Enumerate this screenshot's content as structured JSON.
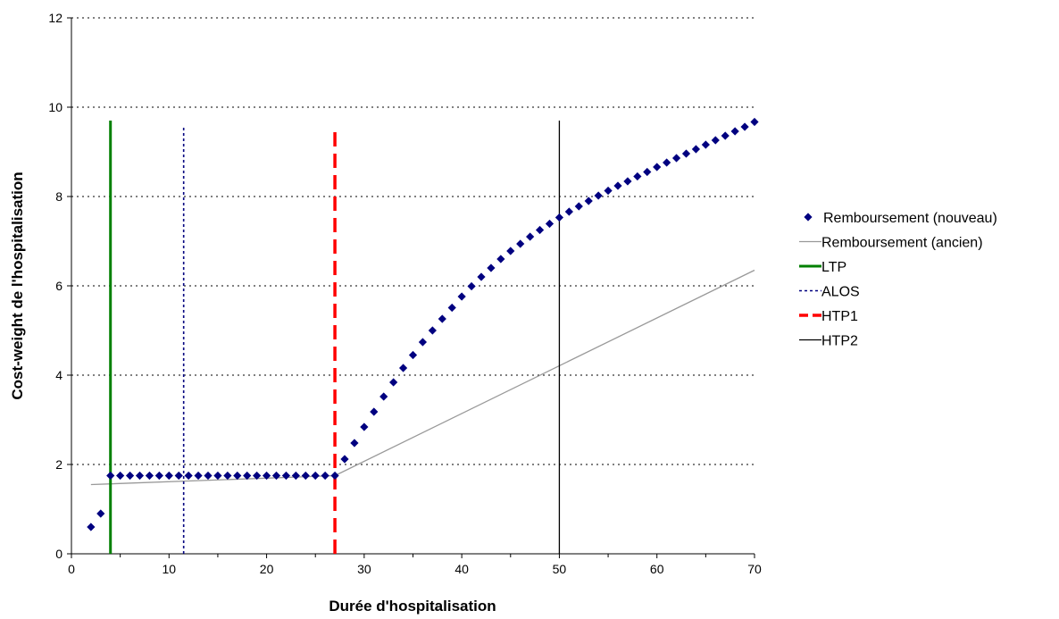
{
  "chart_data": {
    "type": "scatter",
    "title": "",
    "xlabel": "Durée d'hospitalisation",
    "ylabel": "Cost-weight de l'hospitalisation",
    "xlim": [
      0,
      70
    ],
    "ylim": [
      0,
      12
    ],
    "xticks": [
      "0",
      "10",
      "20",
      "30",
      "40",
      "50",
      "60",
      "70"
    ],
    "yticks": [
      "0",
      "2",
      "4",
      "6",
      "8",
      "10",
      "12"
    ],
    "grid": "horizontal dotted",
    "legend_position": "right",
    "series": [
      {
        "name": "Remboursement (nouveau)",
        "kind": "markers",
        "marker": "diamond",
        "color": "#000080",
        "x": [
          2,
          3,
          4,
          5,
          6,
          7,
          8,
          9,
          10,
          11,
          12,
          13,
          14,
          15,
          16,
          17,
          18,
          19,
          20,
          21,
          22,
          23,
          24,
          25,
          26,
          27,
          28,
          29,
          30,
          31,
          32,
          33,
          34,
          35,
          36,
          37,
          38,
          39,
          40,
          41,
          42,
          43,
          44,
          45,
          46,
          47,
          48,
          49,
          50,
          51,
          52,
          53,
          54,
          55,
          56,
          57,
          58,
          59,
          60,
          61,
          62,
          63,
          64,
          65,
          66,
          67,
          68,
          69,
          70
        ],
        "y": [
          0.6,
          0.9,
          1.75,
          1.75,
          1.75,
          1.75,
          1.75,
          1.75,
          1.75,
          1.75,
          1.75,
          1.75,
          1.75,
          1.75,
          1.75,
          1.75,
          1.75,
          1.75,
          1.75,
          1.75,
          1.75,
          1.75,
          1.75,
          1.75,
          1.75,
          1.75,
          2.12,
          2.48,
          2.84,
          3.18,
          3.52,
          3.84,
          4.16,
          4.45,
          4.74,
          5.0,
          5.26,
          5.51,
          5.76,
          5.99,
          6.2,
          6.4,
          6.6,
          6.78,
          6.94,
          7.1,
          7.25,
          7.39,
          7.53,
          7.66,
          7.78,
          7.9,
          8.02,
          8.13,
          8.24,
          8.34,
          8.45,
          8.55,
          8.66,
          8.76,
          8.86,
          8.96,
          9.06,
          9.16,
          9.26,
          9.36,
          9.46,
          9.56,
          9.67
        ]
      },
      {
        "name": "Remboursement (ancien)",
        "kind": "line",
        "color": "#999999",
        "x": [
          2,
          27,
          70
        ],
        "y": [
          1.55,
          1.75,
          6.35
        ]
      },
      {
        "name": "LTP",
        "kind": "vline",
        "style": "solid",
        "color": "#008000",
        "x": 4,
        "y": [
          0,
          9.7
        ]
      },
      {
        "name": "ALOS",
        "kind": "vline",
        "style": "dotted",
        "color": "#000080",
        "x": 11.5,
        "y": [
          0,
          9.6
        ]
      },
      {
        "name": "HTP1",
        "kind": "vline",
        "style": "dashed",
        "color": "#ff0000",
        "x": 27,
        "y": [
          0,
          9.5
        ]
      },
      {
        "name": "HTP2",
        "kind": "vline",
        "style": "solid",
        "color": "#000000",
        "x": 50,
        "y": [
          0,
          9.7
        ]
      }
    ]
  }
}
